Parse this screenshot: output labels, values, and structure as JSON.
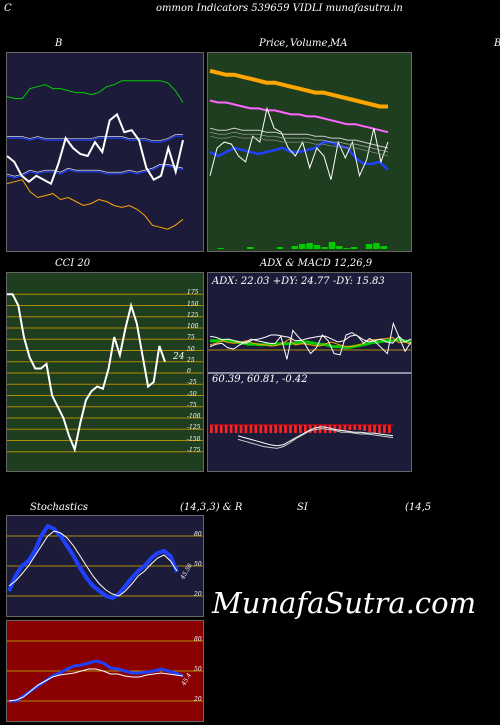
{
  "header": {
    "title": "ommon  Indicators 539659 VIDLI munafasutra.in",
    "left_char": "C"
  },
  "watermark": "MunafaSutra.com",
  "bb_panel": {
    "label": "B"
  },
  "price_panel": {
    "label_a": "Price,",
    "label_b": "Volume,",
    "label_c": "MA"
  },
  "right_edge_char": "B",
  "cci_panel": {
    "label": "CCI 20",
    "last_label": "24"
  },
  "adx_panel": {
    "label": "ADX  & MACD 12,26,9",
    "adx_text": "ADX: 22.03 +DY: 24.77 -DY: 15.83"
  },
  "macd_panel": {
    "text": "60.39,  60.81,  -0.42"
  },
  "stoch_panel": {
    "label": "Stochastics",
    "params": "(14,3,3) & R",
    "value_label": "45.56"
  },
  "rsi_panel": {
    "label": "SI",
    "params": "(14,5",
    "value_label": "45.4"
  },
  "colors": {
    "panel_navy": "#1c1c3a",
    "panel_green": "#1f3d1f",
    "panel_red": "#8b0000",
    "orange": "#ffa500",
    "green": "#00cc00",
    "blue": "#2040ff",
    "white": "#ffffff"
  },
  "chart_data": [
    {
      "type": "line",
      "name": "bollinger",
      "series": [
        {
          "values": [
            78,
            77,
            77,
            82,
            83,
            84,
            82,
            82,
            81,
            80,
            80,
            79,
            80,
            83,
            84,
            86,
            86,
            86,
            86,
            86,
            86,
            85,
            81,
            75
          ]
        },
        {
          "values": [
            57,
            57,
            57,
            56,
            57,
            56,
            56,
            56,
            56,
            56,
            56,
            56,
            57,
            57,
            57,
            57,
            56,
            56,
            56,
            55,
            55,
            56,
            58,
            58
          ]
        },
        {
          "values": [
            38,
            37,
            38,
            40,
            39,
            40,
            40,
            39,
            41,
            40,
            40,
            40,
            40,
            39,
            39,
            39,
            40,
            39,
            40,
            41,
            43,
            43,
            42,
            41
          ]
        },
        {
          "values": [
            34,
            35,
            36,
            30,
            27,
            28,
            29,
            26,
            27,
            25,
            23,
            24,
            26,
            25,
            23,
            22,
            23,
            21,
            18,
            13,
            12,
            11,
            13,
            16
          ]
        },
        {
          "values": [
            48,
            45,
            38,
            35,
            38,
            36,
            34,
            44,
            57,
            52,
            49,
            48,
            55,
            50,
            66,
            69,
            60,
            61,
            56,
            42,
            36,
            38,
            52,
            40,
            56
          ]
        }
      ],
      "ylim": [
        0,
        100
      ]
    },
    {
      "type": "line",
      "name": "price_volume_ma",
      "series": [
        {
          "values": [
            91,
            90,
            89,
            89,
            88,
            87,
            86,
            85,
            85,
            84,
            83,
            82,
            81,
            80,
            80,
            79,
            78,
            77,
            76,
            75,
            74,
            73,
            73
          ]
        },
        {
          "values": [
            76,
            75,
            75,
            74,
            73,
            72,
            72,
            71,
            71,
            70,
            69,
            69,
            68,
            68,
            67,
            66,
            65,
            64,
            64,
            63,
            62,
            61,
            60
          ]
        },
        {
          "values": [
            62,
            61,
            61,
            62,
            61,
            61,
            61,
            60,
            60,
            59,
            59,
            59,
            59,
            58,
            58,
            57,
            57,
            56,
            56,
            55,
            54,
            53,
            52
          ]
        },
        {
          "values": [
            50,
            48,
            50,
            52,
            51,
            50,
            49,
            50,
            51,
            52,
            50,
            50,
            51,
            52,
            55,
            55,
            53,
            52,
            47,
            44,
            44,
            45,
            41
          ]
        },
        {
          "values": [
            38,
            52,
            55,
            54,
            48,
            45,
            58,
            55,
            72,
            62,
            60,
            52,
            48,
            55,
            42,
            52,
            48,
            36,
            55,
            47,
            55,
            38,
            46,
            62,
            45,
            55
          ]
        }
      ],
      "volume": [
        0,
        1,
        0,
        0,
        0,
        2,
        0,
        0,
        0,
        2,
        0,
        3,
        5,
        6,
        4,
        2,
        7,
        3,
        1,
        2,
        0,
        5,
        6,
        3
      ],
      "ylim": [
        0,
        100
      ]
    },
    {
      "type": "line",
      "name": "cci_20",
      "series": [
        {
          "values": [
            175,
            175,
            150,
            80,
            35,
            10,
            10,
            20,
            -50,
            -75,
            -100,
            -140,
            -170,
            -110,
            -60,
            -40,
            -30,
            -35,
            10,
            80,
            40,
            100,
            150,
            110,
            40,
            -30,
            -20,
            60,
            25
          ]
        }
      ],
      "yticks": [
        175,
        150,
        125,
        100,
        75,
        50,
        25,
        0,
        -25,
        -50,
        -75,
        -100,
        -125,
        -150,
        -175
      ],
      "ylim": [
        -200,
        200
      ]
    },
    {
      "type": "line",
      "name": "adx",
      "series": [
        {
          "values": [
            52,
            52,
            53,
            53,
            50,
            48,
            46,
            46,
            45,
            46,
            46,
            47,
            47,
            48,
            50,
            50,
            48,
            46,
            45,
            42,
            42,
            40,
            42,
            44,
            46,
            49,
            50,
            52,
            52,
            54,
            52,
            50
          ]
        },
        {
          "values": [
            45,
            48,
            52,
            49,
            48,
            50,
            52,
            48,
            46,
            45,
            43,
            44,
            48,
            55,
            45,
            47,
            46,
            44,
            43,
            47,
            50,
            46,
            43,
            42,
            44,
            47,
            53,
            54,
            55,
            56,
            58,
            49,
            50,
            46
          ]
        },
        {
          "values": [
            60,
            58,
            54,
            55,
            52,
            50,
            48,
            54,
            55,
            58,
            62,
            62,
            60,
            58,
            52,
            53,
            56,
            58,
            60,
            60,
            55,
            50,
            52,
            60,
            62,
            55,
            50,
            52,
            55,
            50,
            48,
            60,
            50,
            55
          ]
        },
        {
          "values": [
            42,
            46,
            48,
            40,
            38,
            45,
            50,
            55,
            52,
            50,
            48,
            47,
            60,
            20,
            70,
            58,
            48,
            30,
            40,
            62,
            52,
            30,
            28,
            62,
            66,
            60,
            48,
            56,
            50,
            40,
            30,
            82,
            58,
            34,
            50
          ]
        }
      ],
      "ylim": [
        0,
        100
      ]
    },
    {
      "type": "bar",
      "name": "macd",
      "values": [
        -8,
        -8,
        -8,
        -8,
        -8,
        -8,
        -8,
        -8,
        -8,
        -8,
        -8,
        -8,
        -8,
        -8,
        -8,
        -8,
        -8,
        -8,
        -8,
        -8,
        -8,
        -8,
        -8,
        -8,
        -8,
        -8,
        -6,
        -5,
        -5,
        -5,
        -5,
        -6,
        -7,
        -8,
        -8,
        -8,
        -8
      ],
      "series": [
        {
          "values": [
            -12,
            -14,
            -16,
            -18,
            -20,
            -22,
            -23,
            -22,
            -18,
            -14,
            -10,
            -6,
            -3,
            -2,
            -3,
            -5,
            -6,
            -7,
            -8,
            -8,
            -9,
            -9,
            -10,
            -11,
            -12
          ]
        },
        {
          "values": [
            -16,
            -18,
            -20,
            -22,
            -24,
            -25,
            -26,
            -24,
            -20,
            -15,
            -11,
            -7,
            -5,
            -4,
            -5,
            -6,
            -8,
            -8,
            -9,
            -10,
            -10,
            -11,
            -12,
            -13,
            -14
          ]
        }
      ],
      "ylim": [
        -50,
        50
      ]
    },
    {
      "type": "line",
      "name": "stochastics",
      "series": [
        {
          "values": [
            30,
            35,
            42,
            50,
            60,
            70,
            80,
            85,
            83,
            78,
            70,
            60,
            50,
            40,
            32,
            26,
            22,
            20,
            25,
            32,
            40,
            45,
            52,
            58,
            61,
            55,
            45
          ]
        },
        {
          "values": [
            25,
            40,
            50,
            55,
            65,
            80,
            90,
            87,
            80,
            70,
            60,
            48,
            38,
            30,
            25,
            20,
            18,
            22,
            30,
            38,
            45,
            50,
            58,
            63,
            65,
            60,
            44
          ]
        }
      ],
      "yticks": [
        80,
        50,
        20
      ],
      "ylim": [
        0,
        100
      ]
    },
    {
      "type": "line",
      "name": "rsi",
      "series": [
        {
          "values": [
            20,
            20,
            25,
            30,
            35,
            40,
            45,
            48,
            52,
            55,
            56,
            58,
            60,
            58,
            53,
            52,
            50,
            48,
            48,
            49,
            50,
            52,
            50,
            48,
            45
          ]
        },
        {
          "values": [
            20,
            21,
            24,
            30,
            36,
            40,
            44,
            46,
            47,
            48,
            50,
            52,
            52,
            50,
            47,
            47,
            45,
            44,
            44,
            46,
            47,
            48,
            47,
            46,
            45
          ]
        }
      ],
      "yticks": [
        80,
        50,
        20
      ],
      "ylim": [
        0,
        100
      ]
    }
  ]
}
